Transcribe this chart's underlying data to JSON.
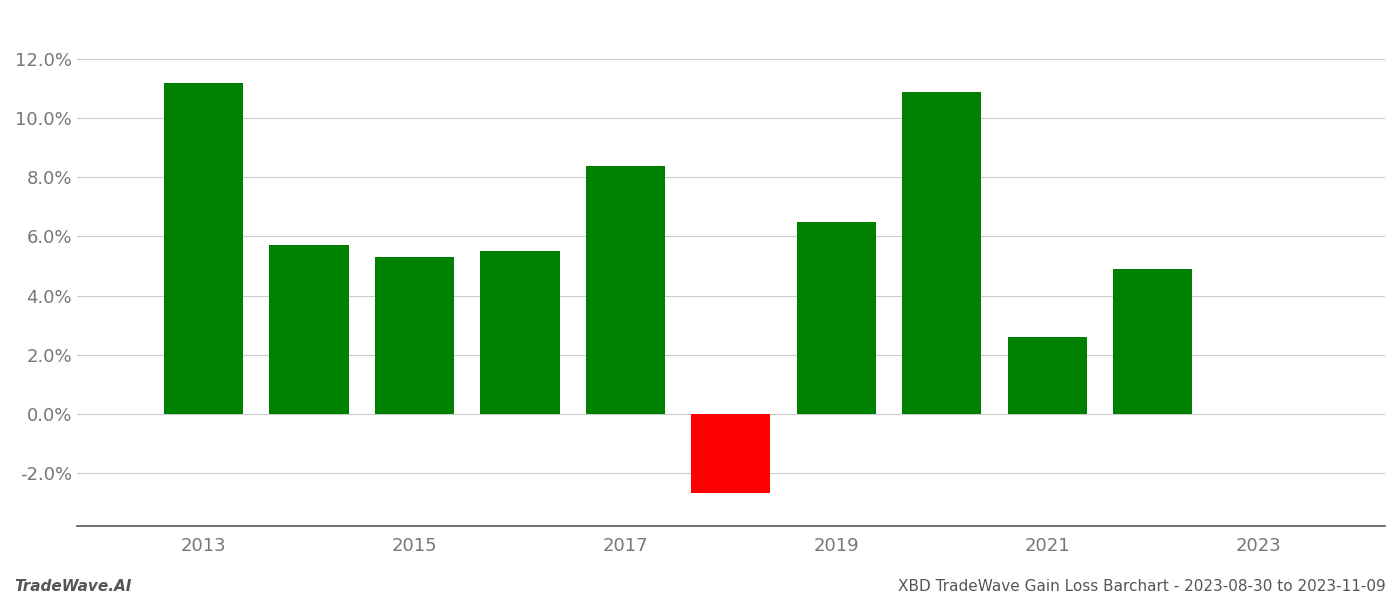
{
  "years": [
    2013,
    2014,
    2015,
    2016,
    2017,
    2018,
    2019,
    2020,
    2021,
    2022
  ],
  "values": [
    0.112,
    0.057,
    0.053,
    0.055,
    0.084,
    -0.027,
    0.065,
    0.109,
    0.026,
    0.049
  ],
  "colors": [
    "#008000",
    "#008000",
    "#008000",
    "#008000",
    "#008000",
    "#ff0000",
    "#008000",
    "#008000",
    "#008000",
    "#008000"
  ],
  "footer_left": "TradeWave.AI",
  "footer_right": "XBD TradeWave Gain Loss Barchart - 2023-08-30 to 2023-11-09",
  "ylim": [
    -0.038,
    0.135
  ],
  "yticks": [
    -0.02,
    0.0,
    0.02,
    0.04,
    0.06,
    0.08,
    0.1,
    0.12
  ],
  "xtick_labels": [
    "2013",
    "2015",
    "2017",
    "2019",
    "2021",
    "2023"
  ],
  "xtick_positions": [
    2013,
    2015,
    2017,
    2019,
    2021,
    2023
  ],
  "background_color": "#ffffff",
  "grid_color": "#cccccc",
  "bar_width": 0.75,
  "xlim": [
    2011.8,
    2024.2
  ],
  "figsize": [
    14.0,
    6.0
  ],
  "dpi": 100
}
